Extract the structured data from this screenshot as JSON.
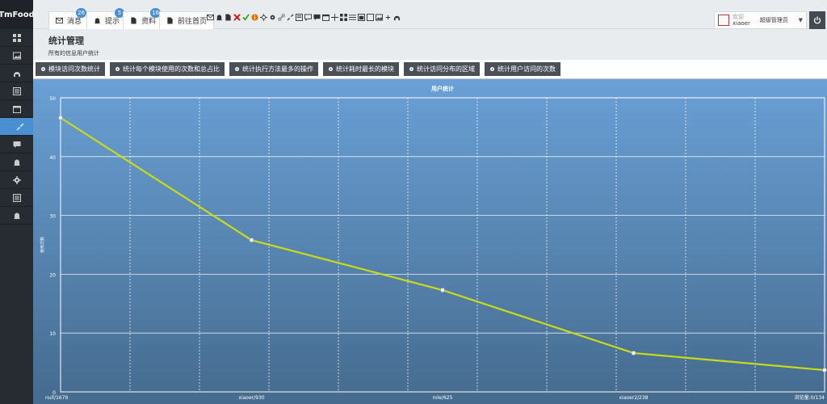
{
  "app": {
    "brand": "TmFood"
  },
  "sidebar": {
    "items": [
      {
        "icon": "dashboard-icon"
      },
      {
        "icon": "picture-icon"
      },
      {
        "icon": "headset-icon"
      },
      {
        "icon": "list-icon"
      },
      {
        "icon": "calendar-icon"
      },
      {
        "icon": "compress-icon",
        "active": true
      },
      {
        "icon": "comment-icon"
      },
      {
        "icon": "bell-icon"
      },
      {
        "icon": "gear-icon"
      },
      {
        "icon": "list-icon"
      },
      {
        "icon": "bell-icon"
      }
    ]
  },
  "topbar": {
    "tabs": [
      {
        "label": "消息",
        "badge": "26",
        "icon": "envelope-icon"
      },
      {
        "label": "提示",
        "badge": "5",
        "icon": "bell-icon"
      },
      {
        "label": "资料",
        "badge": "16",
        "icon": "file-icon"
      },
      {
        "label": "前往首页",
        "icon": "file-icon"
      }
    ],
    "user": {
      "welcome": "欢迎",
      "name": "xiaoer",
      "role": "超级管理员"
    }
  },
  "page": {
    "title": "统计管理",
    "subtitle": "所有的信息用户统计"
  },
  "buttons": [
    "模块访问次数统计",
    "统计每个模块使用的次数和总占比",
    "统计执行方法最多的操作",
    "统计耗时最长的模块",
    "统计访问分布的区域",
    "统计用户访问的次数"
  ],
  "chart_data": {
    "type": "line",
    "title": "用户统计",
    "ylabel": "使用次数",
    "ylim": [
      0,
      50
    ],
    "yticks": [
      0,
      10,
      20,
      30,
      40,
      50
    ],
    "x_labels": [
      "null/1679",
      "xiaoer/930",
      "role/625",
      "xiaoer2/238",
      "浏览量:0/134"
    ],
    "series": [
      {
        "values": [
          46.6,
          25.8,
          17.3,
          6.6,
          3.7
        ]
      }
    ],
    "line_color": "#c8dc14",
    "grid": true
  }
}
